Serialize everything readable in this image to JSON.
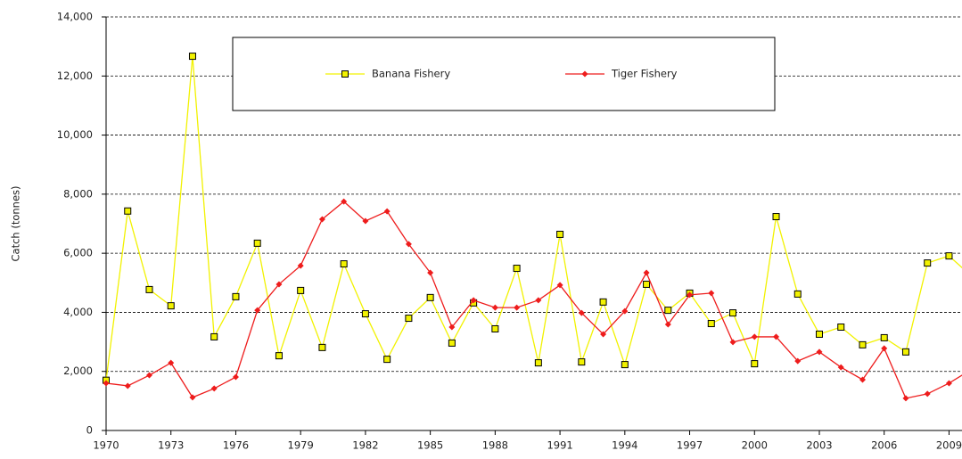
{
  "chart_data": {
    "type": "line",
    "y_label": "Catch (tonnes)",
    "x": [
      1970,
      1971,
      1972,
      1973,
      1974,
      1975,
      1976,
      1977,
      1978,
      1979,
      1980,
      1981,
      1982,
      1983,
      1984,
      1985,
      1986,
      1987,
      1988,
      1989,
      1990,
      1991,
      1992,
      1993,
      1994,
      1995,
      1996,
      1997,
      1998,
      1999,
      2000,
      2001,
      2002,
      2003,
      2004,
      2005,
      2006,
      2007,
      2008,
      2009,
      2010
    ],
    "series": [
      {
        "name": "Banana Fishery",
        "color": "#f2f200",
        "marker": "square",
        "values": [
          1700,
          7430,
          4770,
          4220,
          12670,
          3170,
          4530,
          6340,
          2530,
          4740,
          2810,
          5640,
          3950,
          2410,
          3800,
          4500,
          2960,
          4320,
          3440,
          5490,
          2290,
          6640,
          2320,
          4350,
          2230,
          4950,
          4070,
          4650,
          3620,
          3980,
          2260,
          7240,
          4620,
          3260,
          3500,
          2900,
          3140,
          2660,
          5670,
          5910,
          5250
        ]
      },
      {
        "name": "Tiger Fishery",
        "color": "#ee1c1c",
        "marker": "diamond",
        "values": [
          1600,
          1510,
          1870,
          2290,
          1120,
          1420,
          1810,
          4070,
          4950,
          5580,
          7150,
          7750,
          7090,
          7420,
          6310,
          5340,
          3500,
          4410,
          4160,
          4160,
          4410,
          4920,
          3980,
          3260,
          4040,
          5340,
          3590,
          4590,
          4650,
          2990,
          3170,
          3170,
          2350,
          2660,
          2140,
          1720,
          2780,
          1090,
          1240,
          1600,
          2050
        ]
      }
    ],
    "xlim": [
      1970,
      2009.6
    ],
    "xticks": [
      1970,
      1973,
      1976,
      1979,
      1982,
      1985,
      1988,
      1991,
      1994,
      1997,
      2000,
      2003,
      2006,
      2009
    ],
    "ylim": [
      0,
      14000
    ],
    "yticks": [
      0,
      {
        "value": 2000,
        "label": "2,000"
      },
      {
        "value": 4000,
        "label": "4,000"
      },
      {
        "value": 6000,
        "label": "6,000"
      },
      {
        "value": 8000,
        "label": "8,000"
      },
      {
        "value": 10000,
        "label": "10,000"
      },
      {
        "value": 12000,
        "label": "12,000"
      },
      {
        "value": 14000,
        "label": "14,000"
      }
    ],
    "grid": true
  }
}
